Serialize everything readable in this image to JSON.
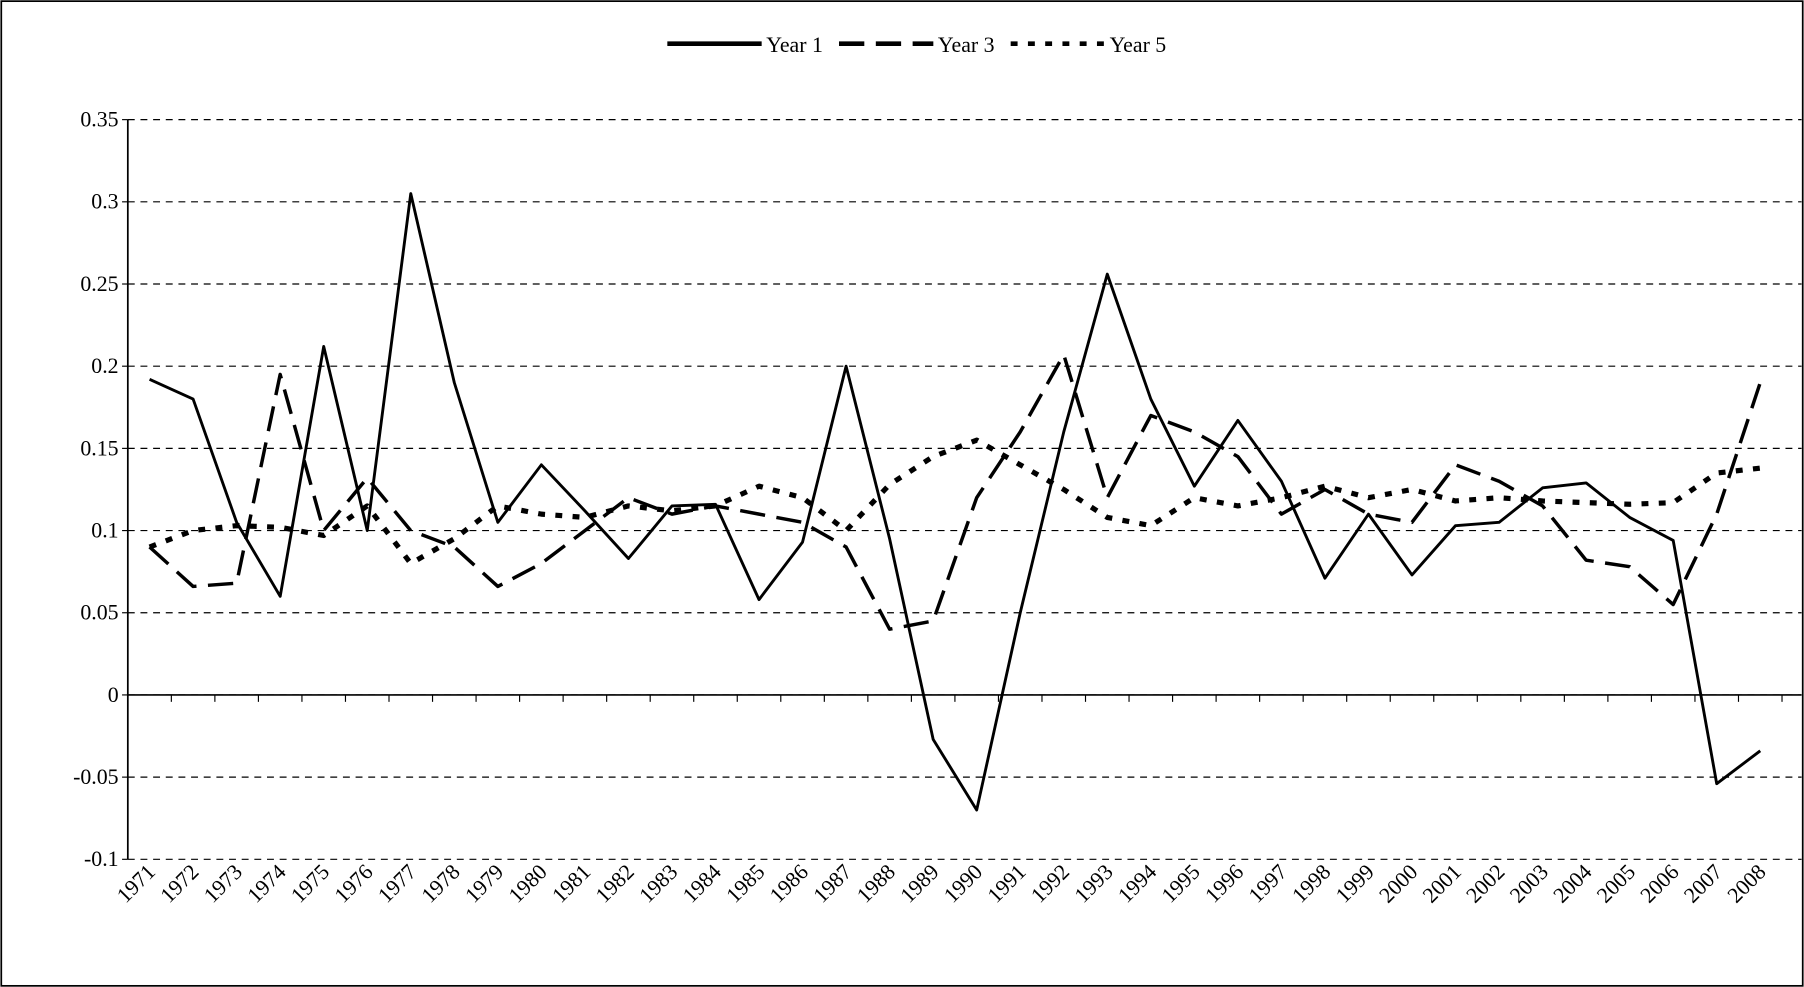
{
  "chart_data": {
    "type": "line",
    "categories": [
      "1971",
      "1972",
      "1973",
      "1974",
      "1975",
      "1976",
      "1977",
      "1978",
      "1979",
      "1980",
      "1981",
      "1982",
      "1983",
      "1984",
      "1985",
      "1986",
      "1987",
      "1988",
      "1989",
      "1990",
      "1991",
      "1992",
      "1993",
      "1994",
      "1995",
      "1996",
      "1997",
      "1998",
      "1999",
      "2000",
      "2001",
      "2002",
      "2003",
      "2004",
      "2005",
      "2006",
      "2007",
      "2008"
    ],
    "series": [
      {
        "name": "Year 1",
        "color": "#000000",
        "dash": "solid",
        "values": [
          0.192,
          0.18,
          0.105,
          0.06,
          0.212,
          0.1,
          0.305,
          0.19,
          0.105,
          0.14,
          0.112,
          0.083,
          0.115,
          0.116,
          0.058,
          0.093,
          0.2,
          0.095,
          -0.027,
          -0.07,
          0.05,
          0.16,
          0.256,
          0.18,
          0.127,
          0.167,
          0.13,
          0.071,
          0.11,
          0.073,
          0.103,
          0.105,
          0.126,
          0.129,
          0.108,
          0.094,
          -0.054,
          -0.034
        ]
      },
      {
        "name": "Year 3",
        "color": "#000000",
        "dash": "dashed",
        "values": [
          0.09,
          0.066,
          0.068,
          0.195,
          0.1,
          0.132,
          0.1,
          0.09,
          0.066,
          0.08,
          0.1,
          0.12,
          0.11,
          0.115,
          0.11,
          0.105,
          0.09,
          0.04,
          0.045,
          0.12,
          0.16,
          0.207,
          0.12,
          0.17,
          0.16,
          0.145,
          0.11,
          0.125,
          0.11,
          0.105,
          0.14,
          0.13,
          0.115,
          0.082,
          0.078,
          0.055,
          0.11,
          0.19
        ]
      },
      {
        "name": "Year 5",
        "color": "#000000",
        "dash": "dotted",
        "values": [
          0.09,
          0.1,
          0.103,
          0.102,
          0.097,
          0.115,
          0.08,
          0.095,
          0.115,
          0.11,
          0.108,
          0.115,
          0.112,
          0.115,
          0.127,
          0.12,
          0.1,
          0.128,
          0.145,
          0.155,
          0.14,
          0.125,
          0.108,
          0.103,
          0.12,
          0.115,
          0.12,
          0.127,
          0.12,
          0.125,
          0.118,
          0.12,
          0.118,
          0.117,
          0.116,
          0.117,
          0.135,
          0.138
        ]
      }
    ],
    "ylim": [
      -0.1,
      0.35
    ],
    "yticks": [
      -0.1,
      -0.05,
      0,
      0.05,
      0.1,
      0.15,
      0.2,
      0.25,
      0.3,
      0.35
    ],
    "grid": true,
    "legend": "top"
  }
}
